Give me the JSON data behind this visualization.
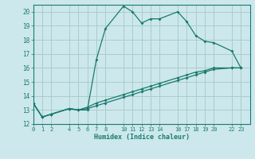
{
  "xlabel": "Humidex (Indice chaleur)",
  "bg_color": "#cce8ec",
  "grid_color": "#aacccc",
  "line_color": "#1a7a6e",
  "series1_x": [
    0,
    1,
    2,
    4,
    5,
    6,
    7,
    8,
    10,
    11,
    12,
    13,
    14,
    16,
    17,
    18,
    19,
    20,
    22,
    23
  ],
  "series1_y": [
    13.5,
    12.5,
    12.7,
    13.1,
    13.0,
    13.0,
    16.6,
    18.8,
    20.4,
    20.0,
    19.2,
    19.5,
    19.5,
    20.0,
    19.3,
    18.3,
    17.9,
    17.8,
    17.2,
    16.0
  ],
  "series2_x": [
    0,
    23
  ],
  "series2_y": [
    13.5,
    16.0
  ],
  "series3_x": [
    0,
    23
  ],
  "series3_y": [
    13.5,
    16.0
  ],
  "series2_x_pts": [
    0,
    1,
    2,
    4,
    5,
    6,
    7,
    8,
    10,
    11,
    12,
    13,
    14,
    16,
    17,
    18,
    19,
    20,
    22,
    23
  ],
  "series2_y_pts": [
    13.5,
    12.5,
    12.7,
    13.1,
    13.0,
    13.2,
    13.5,
    13.7,
    14.1,
    14.3,
    14.5,
    14.7,
    14.9,
    15.3,
    15.5,
    15.7,
    15.8,
    16.0,
    16.0,
    16.0
  ],
  "series3_x_pts": [
    0,
    1,
    2,
    4,
    5,
    6,
    7,
    8,
    10,
    11,
    12,
    13,
    14,
    16,
    17,
    18,
    19,
    20,
    22,
    23
  ],
  "series3_y_pts": [
    13.5,
    12.5,
    12.7,
    13.1,
    13.0,
    13.1,
    13.3,
    13.5,
    13.9,
    14.1,
    14.3,
    14.5,
    14.7,
    15.1,
    15.3,
    15.5,
    15.7,
    15.9,
    16.0,
    16.0
  ],
  "xlim": [
    0,
    24
  ],
  "ylim": [
    12,
    20.5
  ],
  "xticks": [
    0,
    1,
    2,
    4,
    5,
    6,
    7,
    8,
    10,
    11,
    12,
    13,
    14,
    16,
    17,
    18,
    19,
    20,
    22,
    23
  ],
  "yticks": [
    12,
    13,
    14,
    15,
    16,
    17,
    18,
    19,
    20
  ]
}
